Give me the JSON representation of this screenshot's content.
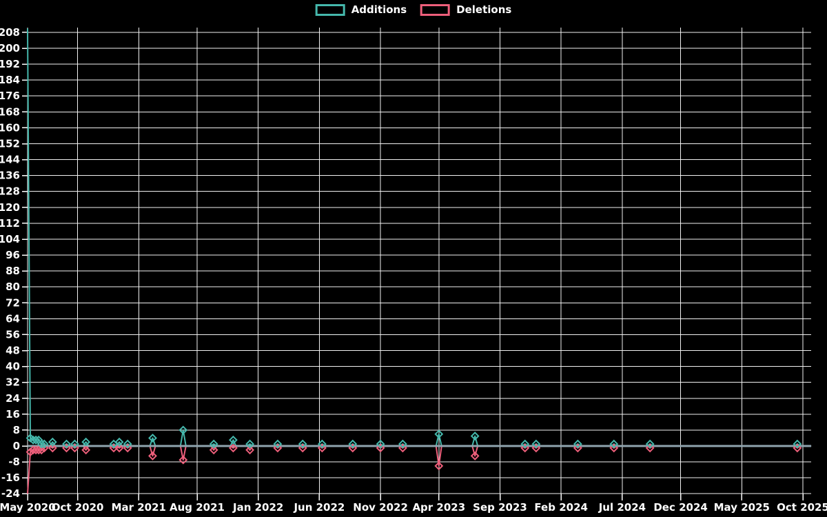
{
  "page": {
    "background": "#000000"
  },
  "legend": {
    "items": [
      {
        "label": "Additions",
        "color": "#45b8ac"
      },
      {
        "label": "Deletions",
        "color": "#ee5f7b"
      }
    ]
  },
  "chart_data": {
    "type": "line",
    "title": "",
    "xlabel": "",
    "ylabel": "",
    "x_unit": "week",
    "n_points": 283,
    "x_start": "May 2020",
    "x_end": "Oct 2025",
    "grid": true,
    "legend_position": "top-center",
    "marker_style": "open-diamond",
    "background_color": "#000000",
    "grid_color": "#f2f2f2",
    "text_color": "#ffffff",
    "zero_line_color": "#90a4ae",
    "y_ticks": {
      "min": -24,
      "max": 208,
      "step": 8
    },
    "ylim": [
      -24.5,
      210
    ],
    "x_tick_labels": [
      {
        "week": 0,
        "label": "May 2020"
      },
      {
        "week": 18,
        "label": "Oct 2020"
      },
      {
        "week": 40,
        "label": "Mar 2021"
      },
      {
        "week": 61,
        "label": "Aug 2021"
      },
      {
        "week": 83,
        "label": "Jan 2022"
      },
      {
        "week": 105,
        "label": "Jun 2022"
      },
      {
        "week": 127,
        "label": "Nov 2022"
      },
      {
        "week": 148,
        "label": "Apr 2023"
      },
      {
        "week": 170,
        "label": "Sep 2023"
      },
      {
        "week": 192,
        "label": "Feb 2024"
      },
      {
        "week": 214,
        "label": "Jul 2024"
      },
      {
        "week": 235,
        "label": "Dec 2024"
      },
      {
        "week": 257,
        "label": "May 2025"
      },
      {
        "week": 279,
        "label": "Oct 2025"
      }
    ],
    "series": [
      {
        "name": "Additions",
        "color": "#45b8ac",
        "default": 0,
        "sparse_values": {
          "0": 210,
          "1": 4,
          "2": 3,
          "3": 3,
          "4": 3,
          "5": 1,
          "6": 1,
          "9": 2,
          "14": 1,
          "17": 1,
          "21": 2,
          "31": 1,
          "33": 2,
          "36": 1,
          "45": 4,
          "56": 8,
          "67": 1,
          "74": 3,
          "80": 1,
          "90": 1,
          "99": 1,
          "106": 1,
          "117": 1,
          "127": 1,
          "135": 1,
          "148": 6,
          "161": 5,
          "179": 1,
          "183": 1,
          "198": 1,
          "211": 1,
          "224": 1,
          "277": 1
        }
      },
      {
        "name": "Deletions",
        "color": "#ee5f7b",
        "default": 0,
        "sparse_values": {
          "0": -24,
          "1": -3,
          "2": -2,
          "3": -2,
          "4": -2,
          "5": -2,
          "6": -1,
          "9": -1,
          "14": -1,
          "17": -1,
          "21": -2,
          "31": -1,
          "33": -1,
          "36": -1,
          "45": -5,
          "56": -7,
          "67": -2,
          "74": -1,
          "80": -2,
          "90": -1,
          "99": -1,
          "106": -1,
          "117": -1,
          "127": -1,
          "135": -1,
          "148": -10,
          "161": -5,
          "179": -1,
          "183": -1,
          "198": -1,
          "211": -1,
          "224": -1,
          "277": -1
        }
      }
    ]
  }
}
